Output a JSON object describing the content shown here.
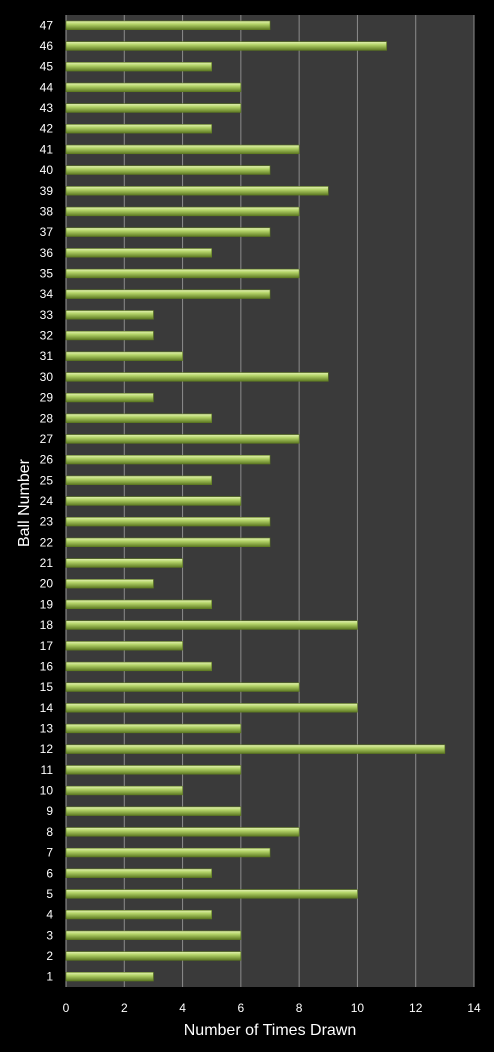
{
  "chart_data": {
    "type": "bar",
    "orientation": "horizontal",
    "title": "",
    "xlabel": "Number of Times Drawn",
    "ylabel": "Ball Number",
    "xlim": [
      0,
      14
    ],
    "x_ticks": [
      0,
      2,
      4,
      6,
      8,
      10,
      12,
      14
    ],
    "grid": true,
    "legend": "none",
    "categories": [
      "1",
      "2",
      "3",
      "4",
      "5",
      "6",
      "7",
      "8",
      "9",
      "10",
      "11",
      "12",
      "13",
      "14",
      "15",
      "16",
      "17",
      "18",
      "19",
      "20",
      "21",
      "22",
      "23",
      "24",
      "25",
      "26",
      "27",
      "28",
      "29",
      "30",
      "31",
      "32",
      "33",
      "34",
      "35",
      "36",
      "37",
      "38",
      "39",
      "40",
      "41",
      "42",
      "43",
      "44",
      "45",
      "46",
      "47"
    ],
    "values": [
      3,
      6,
      6,
      5,
      10,
      5,
      7,
      8,
      6,
      4,
      6,
      13,
      6,
      10,
      8,
      5,
      4,
      10,
      5,
      3,
      4,
      7,
      7,
      6,
      5,
      7,
      8,
      5,
      3,
      9,
      4,
      3,
      3,
      7,
      8,
      5,
      7,
      8,
      9,
      7,
      8,
      5,
      6,
      6,
      5,
      11,
      7
    ],
    "colors": {
      "background": "#000000",
      "plot_area": "#3a3a3a",
      "gridline": "#8c8c8c",
      "bar_fill": "#b5d56a",
      "bar_highlight": "#e4f2b4",
      "bar_shadow": "#5e7a22",
      "text": "#ffffff"
    }
  }
}
